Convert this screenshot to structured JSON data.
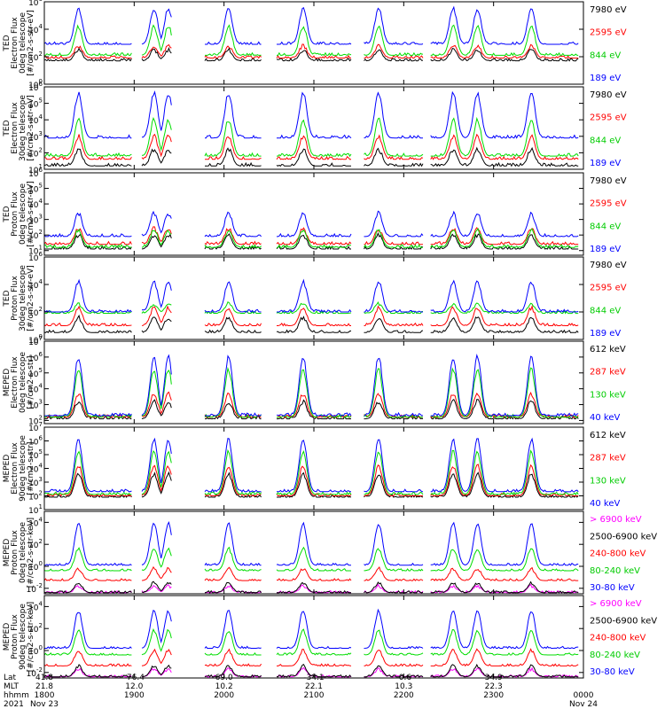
{
  "chart_data": [
    {
      "type": "line",
      "ylabel": [
        "TED",
        "Electron Flux",
        "0deg telescope",
        "[#/cm2-s-str-eV]"
      ],
      "yticks": [
        {
          "label": "10",
          "exp": "0"
        },
        {
          "label": "10",
          "exp": "2"
        },
        {
          "label": "10",
          "exp": "4"
        },
        {
          "label": "10",
          "exp": "6"
        }
      ],
      "ylim_log10": [
        0,
        6
      ],
      "series": [
        {
          "name": "7980 eV",
          "color": "#000000",
          "base": 1.7,
          "peak": 2.5
        },
        {
          "name": "2595 eV",
          "color": "#ff0000",
          "base": 1.9,
          "peak": 2.8
        },
        {
          "name": "844 eV",
          "color": "#00dd00",
          "base": 2.1,
          "peak": 4.2
        },
        {
          "name": "189 eV",
          "color": "#0000ff",
          "base": 2.9,
          "peak": 5.5
        }
      ]
    },
    {
      "type": "line",
      "ylabel": [
        "TED",
        "Electron Flux",
        "30deg telescope",
        "[#/cm2-s-str-eV]"
      ],
      "yticks": [
        {
          "label": "10",
          "exp": "1"
        },
        {
          "label": "10",
          "exp": "2"
        },
        {
          "label": "10",
          "exp": "3"
        },
        {
          "label": "10",
          "exp": "4"
        },
        {
          "label": "10",
          "exp": "5"
        },
        {
          "label": "10",
          "exp": "6"
        }
      ],
      "ylim_log10": [
        1,
        6
      ],
      "series": [
        {
          "name": "7980 eV",
          "color": "#000000",
          "base": 1.2,
          "peak": 2.2
        },
        {
          "name": "2595 eV",
          "color": "#ff0000",
          "base": 1.6,
          "peak": 3.0
        },
        {
          "name": "844 eV",
          "color": "#00dd00",
          "base": 1.8,
          "peak": 4.0
        },
        {
          "name": "189 eV",
          "color": "#0000ff",
          "base": 2.9,
          "peak": 5.6
        }
      ]
    },
    {
      "type": "line",
      "ylabel": [
        "TED",
        "Proton Flux",
        "0deg telescope",
        "[#/cm2-s-str-eV]"
      ],
      "yticks": [
        {
          "label": "10",
          "exp": "1"
        },
        {
          "label": "10",
          "exp": "2"
        },
        {
          "label": "10",
          "exp": "3"
        },
        {
          "label": "10",
          "exp": "4"
        },
        {
          "label": "10",
          "exp": "5"
        },
        {
          "label": "10",
          "exp": "6"
        }
      ],
      "ylim_log10": [
        0.7,
        6
      ],
      "series": [
        {
          "name": "7980 eV",
          "color": "#000000",
          "base": 1.1,
          "peak": 2.0
        },
        {
          "name": "2595 eV",
          "color": "#ff0000",
          "base": 1.4,
          "peak": 2.4
        },
        {
          "name": "844 eV",
          "color": "#00dd00",
          "base": 1.2,
          "peak": 2.3
        },
        {
          "name": "189 eV",
          "color": "#0000ff",
          "base": 1.9,
          "peak": 3.4
        }
      ]
    },
    {
      "type": "line",
      "ylabel": [
        "TED",
        "Proton Flux",
        "30deg telescope",
        "[#/cm2-s-str-eV]"
      ],
      "yticks": [
        {
          "label": "10",
          "exp": "0"
        },
        {
          "label": "10",
          "exp": "2"
        },
        {
          "label": "10",
          "exp": "4"
        },
        {
          "label": "10",
          "exp": "6"
        }
      ],
      "ylim_log10": [
        0,
        6
      ],
      "series": [
        {
          "name": "7980 eV",
          "color": "#000000",
          "base": 0.5,
          "peak": 1.6
        },
        {
          "name": "2595 eV",
          "color": "#ff0000",
          "base": 1.0,
          "peak": 2.3
        },
        {
          "name": "844 eV",
          "color": "#00dd00",
          "base": 1.9,
          "peak": 2.6
        },
        {
          "name": "189 eV",
          "color": "#0000ff",
          "base": 2.0,
          "peak": 4.2
        }
      ]
    },
    {
      "type": "line",
      "ylabel": [
        "MEPED",
        "Electron Flux",
        "0deg telescope",
        "[#/cm2-s-str]"
      ],
      "yticks": [
        {
          "label": "10",
          "exp": "2"
        },
        {
          "label": "10",
          "exp": "3"
        },
        {
          "label": "10",
          "exp": "4"
        },
        {
          "label": "10",
          "exp": "5"
        },
        {
          "label": "10",
          "exp": "6"
        },
        {
          "label": "10",
          "exp": "7"
        }
      ],
      "ylim_log10": [
        1.8,
        7
      ],
      "series": [
        {
          "name": "612 keV",
          "color": "#000000",
          "base": 2.1,
          "peak": 3.2
        },
        {
          "name": "287 keV",
          "color": "#ff0000",
          "base": 2.2,
          "peak": 3.7
        },
        {
          "name": "130 keV",
          "color": "#00dd00",
          "base": 2.2,
          "peak": 5.2
        },
        {
          "name": "40 keV",
          "color": "#0000ff",
          "base": 2.3,
          "peak": 6.0
        }
      ]
    },
    {
      "type": "line",
      "ylabel": [
        "MEPED",
        "Electron Flux",
        "90deg telescope",
        "[#/cm2-s-str]"
      ],
      "yticks": [
        {
          "label": "10",
          "exp": "1"
        },
        {
          "label": "10",
          "exp": "2"
        },
        {
          "label": "10",
          "exp": "3"
        },
        {
          "label": "10",
          "exp": "4"
        },
        {
          "label": "10",
          "exp": "5"
        },
        {
          "label": "10",
          "exp": "6"
        },
        {
          "label": "10",
          "exp": "7"
        }
      ],
      "ylim_log10": [
        1,
        7
      ],
      "series": [
        {
          "name": "612 keV",
          "color": "#000000",
          "base": 1.9,
          "peak": 3.6
        },
        {
          "name": "287 keV",
          "color": "#ff0000",
          "base": 2.0,
          "peak": 4.2
        },
        {
          "name": "130 keV",
          "color": "#00dd00",
          "base": 2.1,
          "peak": 5.2
        },
        {
          "name": "40 keV",
          "color": "#0000ff",
          "base": 2.3,
          "peak": 6.1
        }
      ]
    },
    {
      "type": "line",
      "ylabel": [
        "MEPED",
        "Proton Flux",
        "0deg telescope",
        "[#/cm2-s-str-keV]"
      ],
      "yticks": [
        {
          "label": "10",
          "exp": "-2"
        },
        {
          "label": "10",
          "exp": "0"
        },
        {
          "label": "10",
          "exp": "2"
        },
        {
          "label": "10",
          "exp": "4"
        }
      ],
      "ylim_log10": [
        -2.5,
        5
      ],
      "series": [
        {
          "name": "> 6900 keV",
          "color": "#ff00ff",
          "base": -2.4,
          "peak": -1.8
        },
        {
          "name": "2500-6900 keV",
          "color": "#000000",
          "base": -2.4,
          "peak": -1.5
        },
        {
          "name": "240-800 keV",
          "color": "#ff0000",
          "base": -1.3,
          "peak": -0.2
        },
        {
          "name": "80-240 keV",
          "color": "#00dd00",
          "base": -0.4,
          "peak": 1.6
        },
        {
          "name": "30-80 keV",
          "color": "#0000ff",
          "base": 0.1,
          "peak": 3.9
        }
      ]
    },
    {
      "type": "line",
      "ylabel": [
        "MEPED",
        "Proton Flux",
        "90deg telescope",
        "[#/cm2-s-str-keV]"
      ],
      "yticks": [
        {
          "label": "10",
          "exp": "-2"
        },
        {
          "label": "10",
          "exp": "0"
        },
        {
          "label": "10",
          "exp": "2"
        },
        {
          "label": "10",
          "exp": "4"
        }
      ],
      "ylim_log10": [
        -2.5,
        5
      ],
      "series": [
        {
          "name": "> 6900 keV",
          "color": "#ff00ff",
          "base": -2.4,
          "peak": -1.7
        },
        {
          "name": "2500-6900 keV",
          "color": "#000000",
          "base": -2.4,
          "peak": -1.4
        },
        {
          "name": "240-800 keV",
          "color": "#ff0000",
          "base": -1.4,
          "peak": 0.0
        },
        {
          "name": "80-240 keV",
          "color": "#00dd00",
          "base": -0.4,
          "peak": 1.8
        },
        {
          "name": "30-80 keV",
          "color": "#0000ff",
          "base": 0.2,
          "peak": 3.6
        }
      ]
    }
  ],
  "time_axis": {
    "row_labels": [
      "Lat",
      "MLT",
      "hhmm",
      "2021"
    ],
    "ticks": [
      {
        "t": 0,
        "lat": "41.8",
        "mlt": "21.8",
        "hhmm": "1800",
        "date": "Nov 23"
      },
      {
        "t": 1,
        "lat": "-76.4",
        "mlt": "12.0",
        "hhmm": "1900",
        "date": ""
      },
      {
        "t": 2,
        "lat": "69.0",
        "mlt": "10.2",
        "hhmm": "2000",
        "date": ""
      },
      {
        "t": 3,
        "lat": "-34.1",
        "mlt": "22.1",
        "hhmm": "2100",
        "date": ""
      },
      {
        "t": 4,
        "lat": "-0.6",
        "mlt": "10.3",
        "hhmm": "2200",
        "date": ""
      },
      {
        "t": 5,
        "lat": "34.9",
        "mlt": "22.3",
        "hhmm": "2300",
        "date": ""
      },
      {
        "t": 6,
        "lat": "",
        "mlt": "",
        "hhmm": "0000",
        "date": "Nov 24"
      }
    ],
    "range_hours": [
      0,
      6
    ],
    "pass_centers_hours": [
      0.38,
      1.22,
      1.38,
      2.05,
      2.88,
      3.72,
      4.55,
      4.82,
      5.42
    ]
  }
}
